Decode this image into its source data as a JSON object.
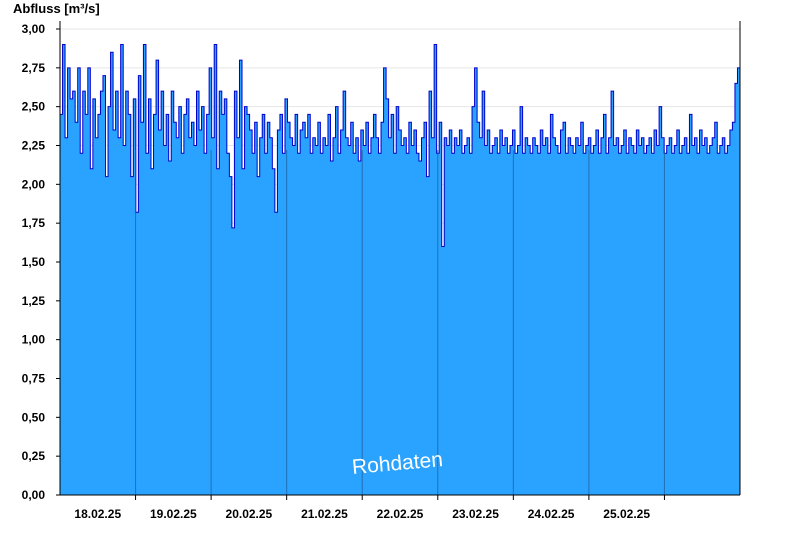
{
  "chart_data": {
    "type": "area",
    "ylabel": "Abfluss [m³/s]",
    "watermark": "Rohdaten",
    "xlim": [
      "17.02.25 00:00",
      "26.02.25 00:00"
    ],
    "ylim": [
      0,
      3.0
    ],
    "y_ticks": [
      "0,00",
      "0,25",
      "0,50",
      "0,75",
      "1,00",
      "1,25",
      "1,50",
      "1,75",
      "2,00",
      "2,25",
      "2,50",
      "2,75",
      "3,00"
    ],
    "x_day_labels": [
      "18.02.25",
      "19.02.25",
      "20.02.25",
      "21.02.25",
      "22.02.25",
      "23.02.25",
      "24.02.25",
      "25.02.25"
    ],
    "grid": true,
    "colors": {
      "fill": "#29a3ff",
      "line": "#0000cc",
      "grid": "#e6e6e6",
      "axis": "#000000"
    },
    "series": [
      {
        "values": [
          2.45,
          2.9,
          2.3,
          2.75,
          2.55,
          2.6,
          2.4,
          2.75,
          2.2,
          2.6,
          2.45,
          2.75,
          2.1,
          2.55,
          2.3,
          2.45,
          2.6,
          2.7,
          2.05,
          2.5,
          2.85,
          2.35,
          2.6,
          2.3,
          2.9,
          2.25,
          2.6,
          2.45,
          2.05,
          2.55,
          1.82,
          2.7,
          2.4,
          2.9,
          2.2,
          2.55,
          2.1,
          2.45,
          2.8,
          2.35,
          2.6,
          2.25,
          2.45,
          2.15,
          2.6,
          2.4,
          2.3,
          2.5,
          2.2,
          2.45,
          2.55,
          2.3,
          2.4,
          2.25,
          2.6,
          2.35,
          2.5,
          2.2,
          2.45,
          2.75,
          2.3,
          2.9,
          2.1,
          2.6,
          2.45,
          2.55,
          2.2,
          2.05,
          1.72,
          2.6,
          2.3,
          2.8,
          2.1,
          2.5,
          2.45,
          2.35,
          2.2,
          2.4,
          2.05,
          2.3,
          2.45,
          2.2,
          2.4,
          2.3,
          2.1,
          1.82,
          2.35,
          2.45,
          2.2,
          2.55,
          2.4,
          2.3,
          2.25,
          2.45,
          2.2,
          2.35,
          2.4,
          2.3,
          2.45,
          2.2,
          2.3,
          2.25,
          2.4,
          2.2,
          2.3,
          2.25,
          2.45,
          2.15,
          2.3,
          2.5,
          2.2,
          2.35,
          2.6,
          2.3,
          2.25,
          2.4,
          2.2,
          2.3,
          2.15,
          2.35,
          2.25,
          2.4,
          2.2,
          2.3,
          2.45,
          2.3,
          2.2,
          2.4,
          2.75,
          2.55,
          2.3,
          2.45,
          2.2,
          2.5,
          2.35,
          2.25,
          2.3,
          2.2,
          2.4,
          2.25,
          2.35,
          2.2,
          2.15,
          2.3,
          2.4,
          2.05,
          2.6,
          2.3,
          2.9,
          2.2,
          2.4,
          1.6,
          2.3,
          2.25,
          2.35,
          2.2,
          2.3,
          2.25,
          2.35,
          2.2,
          2.25,
          2.3,
          2.2,
          2.5,
          2.75,
          2.4,
          2.3,
          2.6,
          2.25,
          2.35,
          2.2,
          2.25,
          2.3,
          2.2,
          2.35,
          2.25,
          2.3,
          2.2,
          2.25,
          2.35,
          2.2,
          2.25,
          2.5,
          2.2,
          2.3,
          2.25,
          2.2,
          2.3,
          2.25,
          2.2,
          2.35,
          2.25,
          2.3,
          2.2,
          2.45,
          2.3,
          2.25,
          2.2,
          2.35,
          2.4,
          2.2,
          2.3,
          2.25,
          2.2,
          2.3,
          2.25,
          2.4,
          2.2,
          2.25,
          2.3,
          2.2,
          2.25,
          2.35,
          2.2,
          2.3,
          2.45,
          2.2,
          2.3,
          2.6,
          2.25,
          2.3,
          2.2,
          2.25,
          2.35,
          2.2,
          2.3,
          2.25,
          2.2,
          2.35,
          2.25,
          2.3,
          2.2,
          2.25,
          2.3,
          2.2,
          2.35,
          2.25,
          2.5,
          2.3,
          2.2,
          2.25,
          2.3,
          2.2,
          2.25,
          2.35,
          2.2,
          2.25,
          2.3,
          2.2,
          2.45,
          2.25,
          2.3,
          2.2,
          2.35,
          2.25,
          2.3,
          2.2,
          2.25,
          2.3,
          2.4,
          2.2,
          2.25,
          2.3,
          2.2,
          2.25,
          2.35,
          2.4,
          2.65,
          2.75
        ]
      }
    ]
  }
}
